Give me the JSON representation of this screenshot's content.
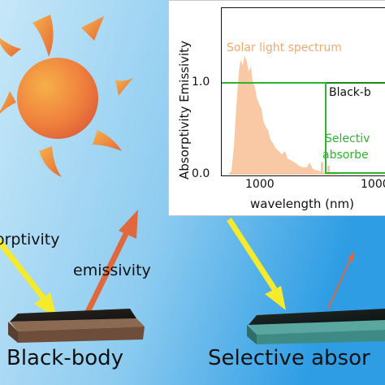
{
  "labels": {
    "absorptivity": "orptivity",
    "emissivity": "emissivity",
    "black_body": "Black-body",
    "selective": "Selective absor"
  },
  "inset": {
    "y_axis_label": "Absorptivity Emissivity",
    "x_axis_label": "wavelength (nm)",
    "y_ticks": [
      "1.0",
      "0.0"
    ],
    "x_ticks": [
      "1000",
      "1000"
    ],
    "solar_label": "Solar light spectrum",
    "black_body_label": "Black-b",
    "selective_label_line1": "Selectiv",
    "selective_label_line2": "absorbe"
  },
  "colors": {
    "background_left": "#bfe3f7",
    "background_right": "#2f9fe6",
    "sun": "#e8683a",
    "ray": "#f49a46",
    "absorbed_arrow": "#f5ea2b",
    "emitted_arrow": "#e0683c",
    "solar_spectrum": "#f8c9a4",
    "selective_curve": "#2db52d",
    "black_body_curve": "#1a8a1a"
  },
  "icons": [
    "sun-icon",
    "absorbed-light-arrow",
    "emission-arrow",
    "black-body-plate",
    "selective-absorber-plate"
  ]
}
